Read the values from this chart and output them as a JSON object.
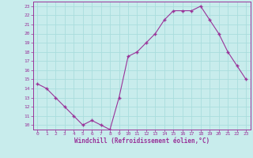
{
  "x": [
    0,
    1,
    2,
    3,
    4,
    5,
    6,
    7,
    8,
    9,
    10,
    11,
    12,
    13,
    14,
    15,
    16,
    17,
    18,
    19,
    20,
    21,
    22,
    23
  ],
  "y": [
    14.5,
    14.0,
    13.0,
    12.0,
    11.0,
    10.0,
    10.5,
    10.0,
    9.5,
    13.0,
    17.5,
    18.0,
    19.0,
    20.0,
    21.5,
    22.5,
    22.5,
    22.5,
    23.0,
    21.5,
    20.0,
    18.0,
    16.5,
    15.0
  ],
  "xlabel": "Windchill (Refroidissement éolien,°C)",
  "ylim": [
    9.5,
    23.5
  ],
  "xlim": [
    -0.5,
    23.5
  ],
  "yticks": [
    10,
    11,
    12,
    13,
    14,
    15,
    16,
    17,
    18,
    19,
    20,
    21,
    22,
    23
  ],
  "xticks": [
    0,
    1,
    2,
    3,
    4,
    5,
    6,
    7,
    8,
    9,
    10,
    11,
    12,
    13,
    14,
    15,
    16,
    17,
    18,
    19,
    20,
    21,
    22,
    23
  ],
  "line_color": "#993399",
  "marker": "+",
  "bg_color": "#c8ecec",
  "grid_color": "#aadddd",
  "tick_color": "#993399",
  "label_color": "#993399",
  "font_family": "monospace",
  "spine_color": "#993399"
}
